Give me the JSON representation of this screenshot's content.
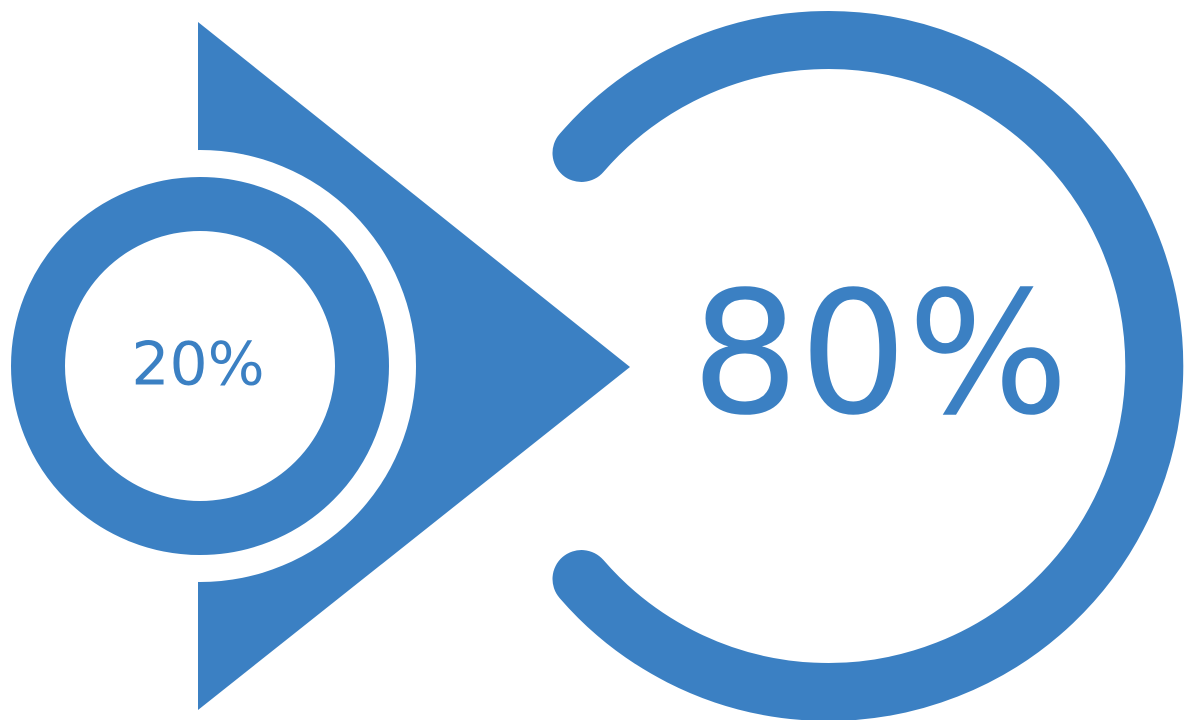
{
  "colors": {
    "primary": "#3B80C3",
    "background": "#FFFFFF"
  },
  "diagram": {
    "small_value": "20%",
    "large_value": "80%",
    "small_fraction": 0.2,
    "large_fraction": 0.8
  }
}
